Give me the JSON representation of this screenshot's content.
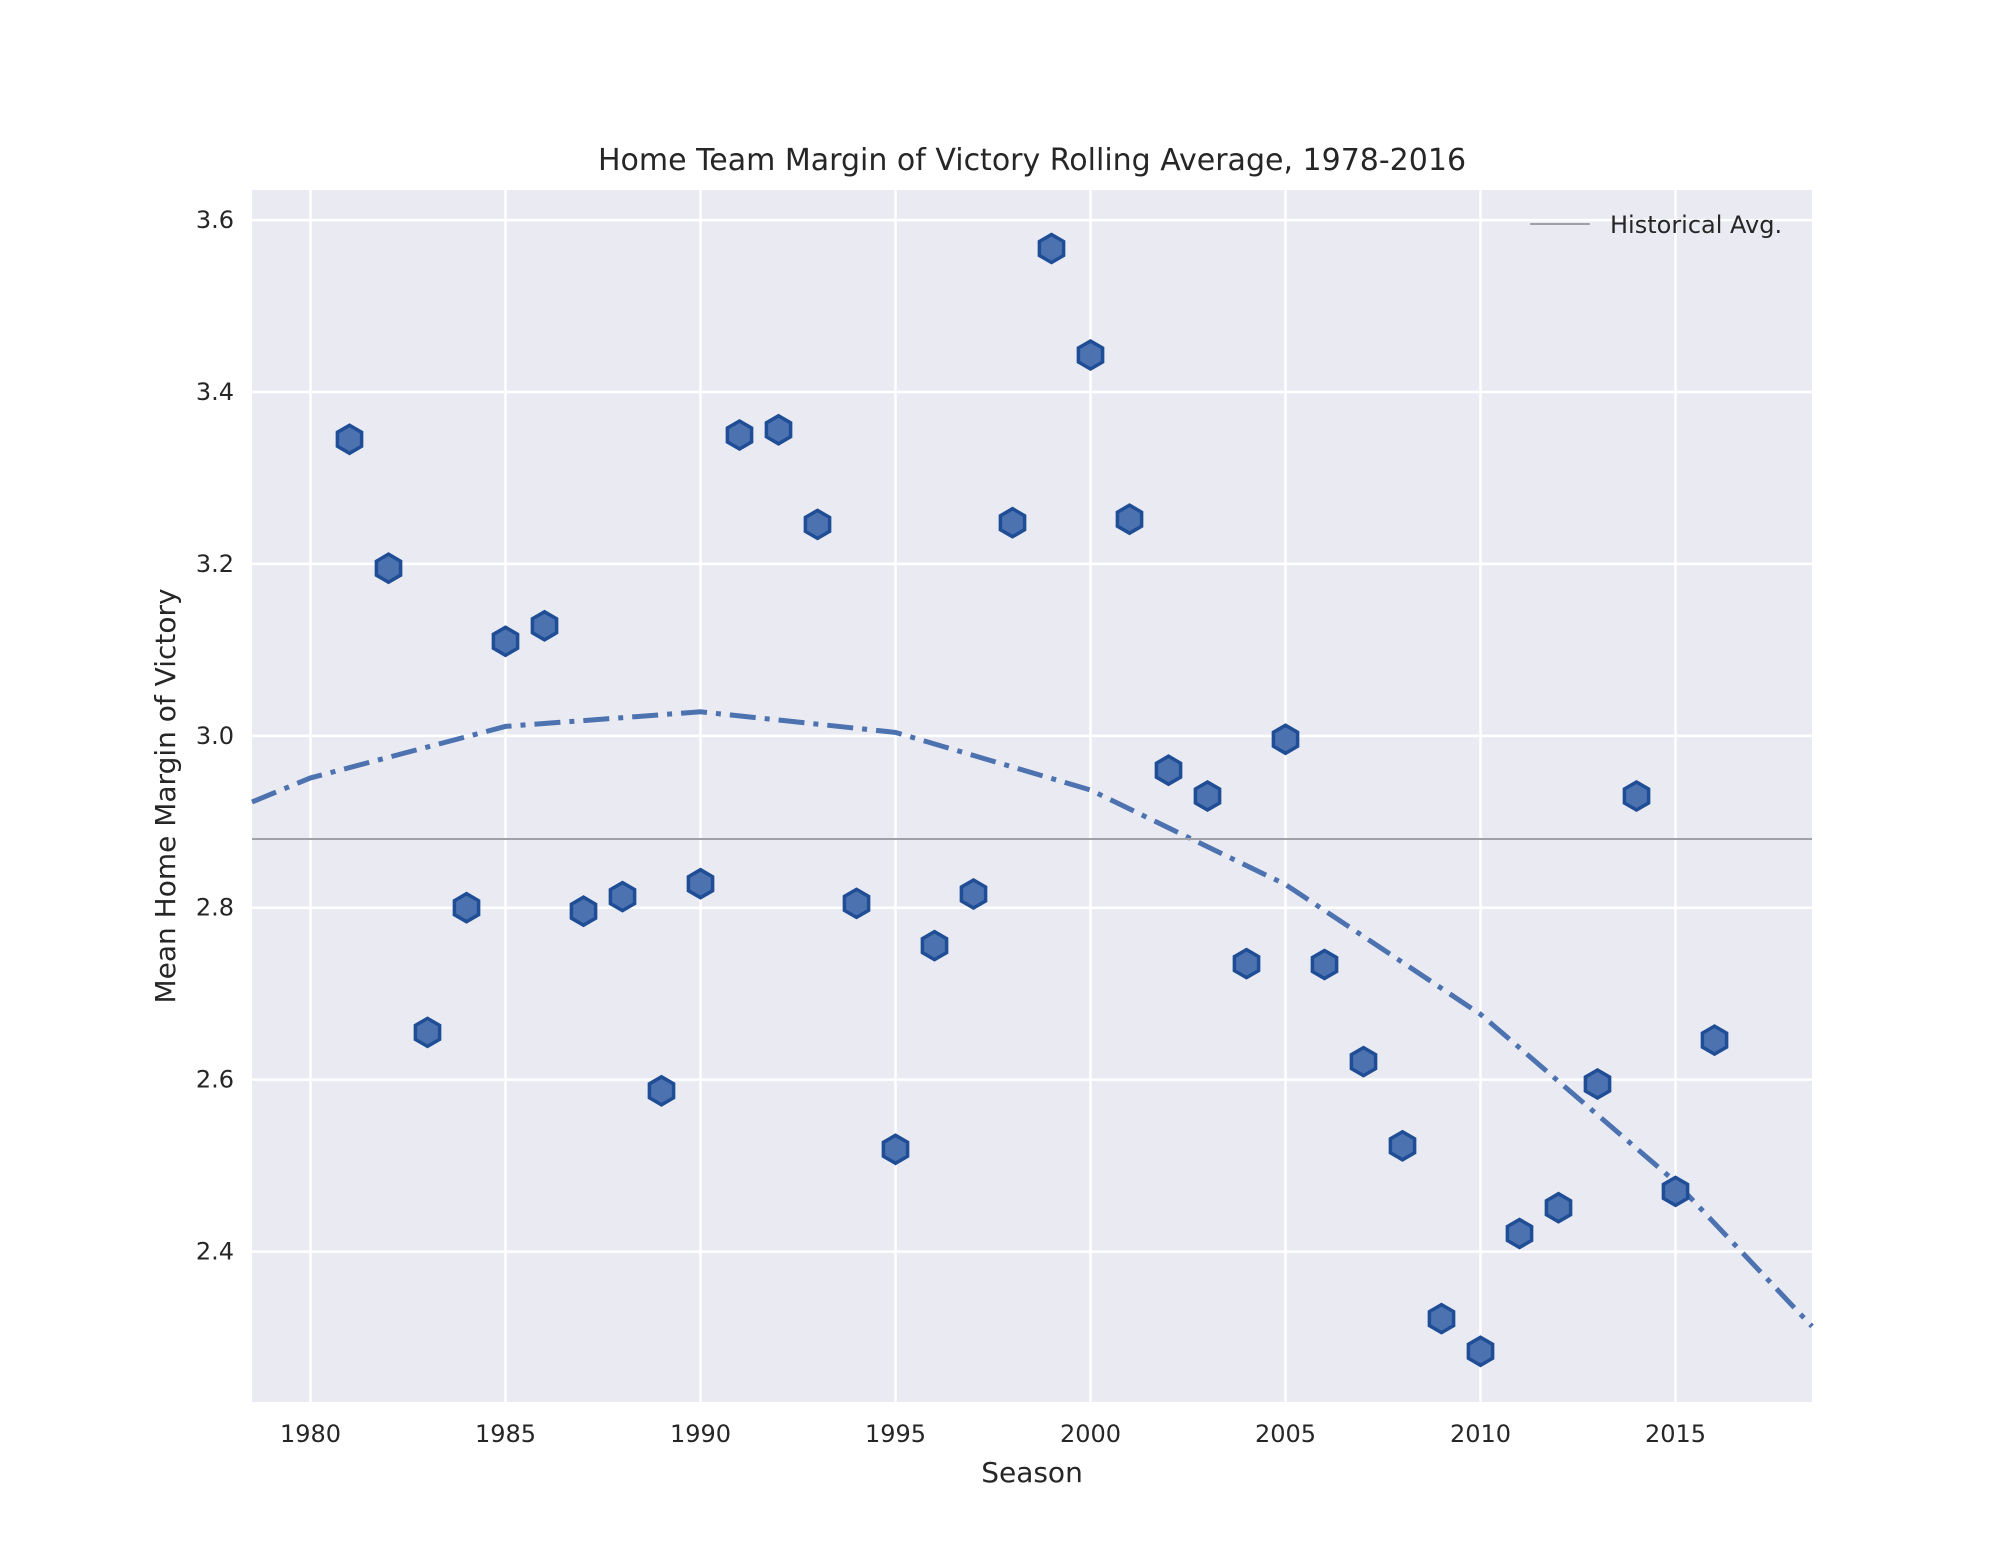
{
  "chart_data": {
    "type": "scatter",
    "title": "Home Team Margin of Victory Rolling Average, 1978-2016",
    "xlabel": "Season",
    "ylabel": "Mean Home Margin of Victory",
    "xlim": [
      1978.5,
      2018.5
    ],
    "ylim": [
      2.225,
      3.635
    ],
    "xticks": [
      1980,
      1985,
      1990,
      1995,
      2000,
      2005,
      2010,
      2015
    ],
    "yticks": [
      "2.4",
      "2.6",
      "2.8",
      "3.0",
      "3.2",
      "3.4",
      "3.6"
    ],
    "grid": true,
    "legend": {
      "position": "top-right",
      "entries": [
        "Historical Avg."
      ]
    },
    "colors": {
      "background": "#eaeaf2",
      "grid": "#ffffff",
      "marker_fill": "#4c72b0",
      "marker_edge": "#1f4e96",
      "trend": "#4c72b0",
      "hline": "#a0a0a8"
    },
    "series": [
      {
        "kind": "scatter",
        "marker": "hexagon",
        "x": [
          1981,
          1982,
          1983,
          1984,
          1985,
          1986,
          1987,
          1988,
          1989,
          1990,
          1991,
          1992,
          1993,
          1994,
          1995,
          1996,
          1997,
          1998,
          1999,
          2000,
          2001,
          2002,
          2003,
          2004,
          2005,
          2006,
          2007,
          2008,
          2009,
          2010,
          2011,
          2012,
          2013,
          2014,
          2015,
          2016
        ],
        "values": [
          3.345,
          3.195,
          2.655,
          2.8,
          3.11,
          3.128,
          2.796,
          2.813,
          2.587,
          2.828,
          3.35,
          3.356,
          3.246,
          2.805,
          2.519,
          2.756,
          2.816,
          3.248,
          3.567,
          3.443,
          3.252,
          2.96,
          2.93,
          2.735,
          2.996,
          2.734,
          2.621,
          2.523,
          2.322,
          2.284,
          2.421,
          2.451,
          2.595,
          2.93,
          2.47,
          2.646
        ]
      },
      {
        "kind": "trend",
        "style": "dash-dot",
        "x": [
          1978.5,
          1980,
          1985,
          1990,
          1995,
          2000,
          2005,
          2010,
          2015,
          2018.5
        ],
        "values": [
          2.923,
          2.951,
          3.011,
          3.028,
          3.004,
          2.937,
          2.827,
          2.676,
          2.481,
          2.313
        ]
      },
      {
        "kind": "hline",
        "name": "Historical Avg.",
        "value": 2.88
      }
    ]
  }
}
